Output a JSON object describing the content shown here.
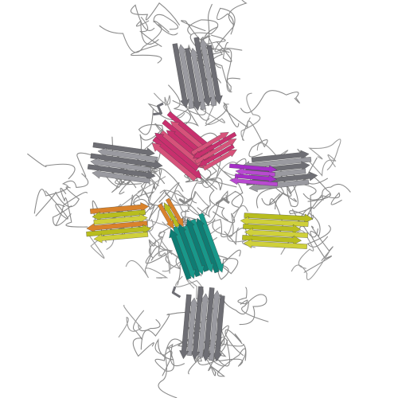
{
  "scene": {
    "background": "#ffffff",
    "subject": "protein-ribbon-structure",
    "symmetry": "four-fold cross",
    "colors": {
      "gray": "#6e6e74",
      "gray_light": "#9a9aa0",
      "magenta": "#c8306e",
      "pink": "#d6527a",
      "purple": "#a62ec8",
      "orange": "#d9822b",
      "yellow": "#b8bd1e",
      "yellow_light": "#cfd03a",
      "teal": "#18988a",
      "teal_dark": "#0f7c73",
      "coil": "#8a8a8a"
    }
  }
}
